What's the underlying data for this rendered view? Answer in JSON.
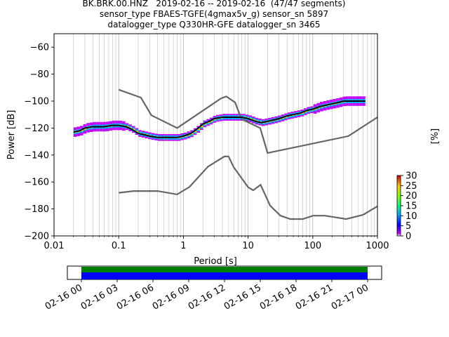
{
  "title_lines": [
    "BK.BRK.00.HNZ   2019-02-16 -- 2019-02-16  (47/47 segments)",
    "sensor_type FBAES-TGFE(4gmax5v_g) sensor_sn 5897",
    "datalogger_type Q330HR-GFE datalogger_sn 3465"
  ],
  "chart_data": [
    {
      "type": "line",
      "subtype": "probabilistic-power-spectral-density",
      "xlabel": "Period [s]",
      "ylabel": "Power [dB]",
      "xscale": "log",
      "xlim": [
        0.01,
        1000
      ],
      "ylim": [
        -200,
        -50
      ],
      "xticks": [
        "0.01",
        "0.1",
        "1",
        "10",
        "100",
        "1000"
      ],
      "yticks": [
        "-60",
        "-80",
        "-100",
        "-120",
        "-140",
        "-160",
        "-180",
        "-200"
      ],
      "grid": "vertical minor and major",
      "noise_models": [
        {
          "role": "high-noise-model",
          "color": "#666666",
          "x": [
            0.1,
            0.22,
            0.32,
            0.8,
            3.8,
            4.6,
            6.3,
            7.9,
            15.4,
            20,
            354.8,
            1000
          ],
          "y": [
            -91.5,
            -97.4,
            -110.5,
            -120,
            -98,
            -96.5,
            -101,
            -113.4,
            -120,
            -138.5,
            -126,
            -112
          ]
        },
        {
          "role": "low-noise-model",
          "color": "#666666",
          "x": [
            0.1,
            0.17,
            0.4,
            0.8,
            1.24,
            2.4,
            4.3,
            5,
            6,
            10,
            12,
            15.6,
            21.9,
            31.6,
            45,
            70,
            101,
            154,
            328,
            600,
            1000
          ],
          "y": [
            -168,
            -166.7,
            -166.7,
            -169.2,
            -163.7,
            -148.6,
            -141.1,
            -141.1,
            -149,
            -163.8,
            -166.2,
            -162.1,
            -177.5,
            -185,
            -187.5,
            -187.5,
            -185,
            -185,
            -187.5,
            -184.4,
            -178
          ]
        }
      ],
      "mode": {
        "color": "#000000",
        "x": [
          0.02,
          0.025,
          0.03,
          0.04,
          0.05,
          0.06,
          0.08,
          0.1,
          0.13,
          0.16,
          0.2,
          0.25,
          0.3,
          0.4,
          0.5,
          0.63,
          0.8,
          1,
          1.3,
          1.6,
          2,
          2.5,
          3,
          4,
          5,
          6,
          8,
          10,
          13,
          16,
          20,
          25,
          30,
          40,
          50,
          63,
          80,
          100,
          130,
          160,
          200,
          250,
          300,
          400,
          500,
          650
        ],
        "y": [
          -123,
          -122,
          -120,
          -119,
          -119,
          -119,
          -118,
          -118,
          -119,
          -121,
          -124,
          -125,
          -126,
          -127,
          -127,
          -127,
          -127,
          -126,
          -124,
          -121,
          -117,
          -115,
          -113,
          -112,
          -112,
          -112,
          -112,
          -113,
          -115,
          -116,
          -115,
          -114,
          -113,
          -111,
          -110,
          -109,
          -107,
          -106,
          -104,
          -103,
          -102,
          -101,
          -100,
          -100,
          -100,
          -100
        ]
      },
      "colorbar": {
        "label": "[%]",
        "ticks": [
          "0",
          "5",
          "10",
          "15",
          "20",
          "25",
          "30"
        ],
        "range": [
          0,
          30
        ]
      }
    },
    {
      "type": "timeline",
      "subtype": "data-coverage",
      "xticks": [
        "02-16 00",
        "02-16 03",
        "02-16 06",
        "02-16 09",
        "02-16 12",
        "02-16 15",
        "02-16 18",
        "02-16 21",
        "02-17 00"
      ],
      "bars": [
        {
          "role": "psd-coverage",
          "color": "#008000",
          "start_hour": 0,
          "end_hour": 24
        },
        {
          "role": "data-coverage",
          "color": "#0000ff",
          "start_hour": 0,
          "end_hour": 24
        }
      ]
    }
  ]
}
